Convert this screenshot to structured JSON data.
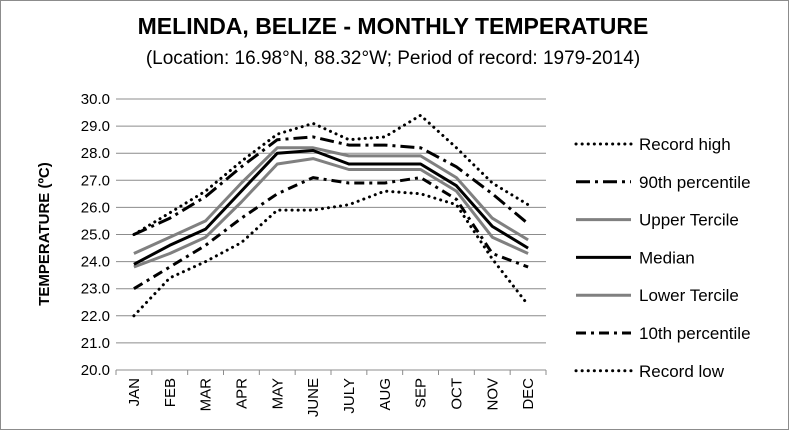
{
  "chart_data": {
    "type": "line",
    "title": "MELINDA, BELIZE - MONTHLY TEMPERATURE",
    "subtitle": "(Location: 16.98°N, 88.32°W; Period of record: 1979-2014)",
    "ylabel": "TEMPERATURE (ºC)",
    "xlabel": "",
    "ylim": [
      20.0,
      30.0
    ],
    "yticks": [
      "20.0",
      "21.0",
      "22.0",
      "23.0",
      "24.0",
      "25.0",
      "26.0",
      "27.0",
      "28.0",
      "29.0",
      "30.0"
    ],
    "grid": "horizontal",
    "legend_position": "right",
    "categories": [
      "JAN",
      "FEB",
      "MAR",
      "APR",
      "MAY",
      "JUNE",
      "JULY",
      "AUG",
      "SEP",
      "OCT",
      "NOV",
      "DEC"
    ],
    "series": [
      {
        "name": "Record high",
        "style": "dotted",
        "color": "#000000",
        "values": [
          25.0,
          25.8,
          26.6,
          27.7,
          28.7,
          29.1,
          28.5,
          28.6,
          29.4,
          28.2,
          26.9,
          26.1
        ]
      },
      {
        "name": "90th percentile",
        "style": "long-dash-dot",
        "color": "#000000",
        "values": [
          25.0,
          25.6,
          26.4,
          27.5,
          28.5,
          28.6,
          28.3,
          28.3,
          28.2,
          27.5,
          26.5,
          25.4
        ]
      },
      {
        "name": "Upper Tercile",
        "style": "solid",
        "color": "#808080",
        "values": [
          24.3,
          24.9,
          25.5,
          26.9,
          28.2,
          28.2,
          27.9,
          27.9,
          27.9,
          27.1,
          25.6,
          24.8
        ]
      },
      {
        "name": "Median",
        "style": "solid",
        "color": "#000000",
        "values": [
          23.9,
          24.6,
          25.2,
          26.6,
          28.0,
          28.1,
          27.6,
          27.6,
          27.6,
          26.8,
          25.3,
          24.5
        ]
      },
      {
        "name": "Lower Tercile",
        "style": "solid",
        "color": "#808080",
        "values": [
          23.8,
          24.3,
          24.9,
          26.2,
          27.6,
          27.8,
          27.4,
          27.4,
          27.4,
          26.6,
          24.9,
          24.3
        ]
      },
      {
        "name": "10th percentile",
        "style": "dash-dot",
        "color": "#000000",
        "values": [
          23.0,
          23.8,
          24.6,
          25.6,
          26.5,
          27.1,
          26.9,
          26.9,
          27.1,
          26.3,
          24.3,
          23.8
        ]
      },
      {
        "name": "Record low",
        "style": "dotted",
        "color": "#000000",
        "values": [
          22.0,
          23.4,
          24.0,
          24.7,
          25.9,
          25.9,
          26.1,
          26.6,
          26.5,
          26.1,
          24.1,
          22.4
        ]
      }
    ]
  }
}
